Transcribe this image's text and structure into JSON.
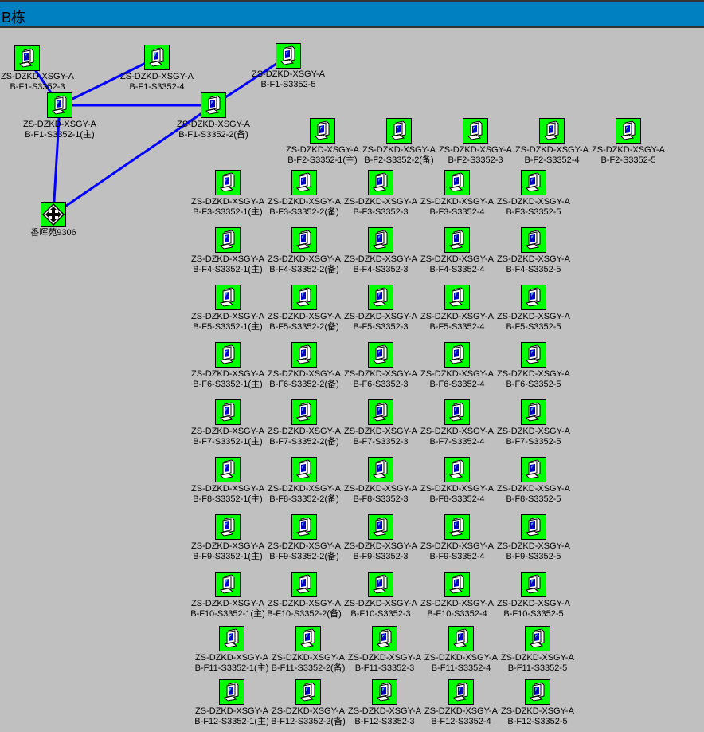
{
  "window": {
    "title": "B栋"
  },
  "colors": {
    "titlebar": "#0080c0",
    "background": "#c0c0c0",
    "node": "#00ff00",
    "link": "#0000ff"
  },
  "gateway": {
    "label": "香晖苑9306",
    "icon": "router-icon"
  },
  "f1_nodes": [
    {
      "id": "f1-3",
      "label": "ZS-DZKD-XSGY-AB-F1-S3352-3",
      "icon": "computer-icon"
    },
    {
      "id": "f1-4",
      "label": "ZS-DZKD-XSGY-AB-F1-S3352-4",
      "icon": "computer-icon"
    },
    {
      "id": "f1-5",
      "label": "ZS-DZKD-XSGY-AB-F1-S3352-5",
      "icon": "computer-icon"
    },
    {
      "id": "f1-1",
      "label": "ZS-DZKD-XSGY-AB-F1-S3352-1(主)",
      "icon": "computer-icon"
    },
    {
      "id": "f1-2",
      "label": "ZS-DZKD-XSGY-AB-F1-S3352-2(备)",
      "icon": "computer-icon"
    }
  ],
  "links": [
    [
      "f1-3",
      "f1-1"
    ],
    [
      "f1-4",
      "f1-1"
    ],
    [
      "f1-1",
      "f1-2"
    ],
    [
      "f1-5",
      "f1-2"
    ],
    [
      "f1-1",
      "gateway"
    ],
    [
      "f1-2",
      "gateway"
    ]
  ],
  "floors": [
    {
      "floor": "F2",
      "labels": [
        "ZS-DZKD-XSGY-AB-F2-S3352-1(主)",
        "ZS-DZKD-XSGY-AB-F2-S3352-2(备)",
        "ZS-DZKD-XSGY-AB-F2-S3352-3",
        "ZS-DZKD-XSGY-AB-F2-S3352-4",
        "ZS-DZKD-XSGY-AB-F2-S3352-5"
      ]
    },
    {
      "floor": "F3",
      "labels": [
        "ZS-DZKD-XSGY-AB-F3-S3352-1(主)",
        "ZS-DZKD-XSGY-AB-F3-S3352-2(备)",
        "ZS-DZKD-XSGY-AB-F3-S3352-3",
        "ZS-DZKD-XSGY-AB-F3-S3352-4",
        "ZS-DZKD-XSGY-AB-F3-S3352-5"
      ]
    },
    {
      "floor": "F4",
      "labels": [
        "ZS-DZKD-XSGY-AB-F4-S3352-1(主)",
        "ZS-DZKD-XSGY-AB-F4-S3352-2(备)",
        "ZS-DZKD-XSGY-AB-F4-S3352-3",
        "ZS-DZKD-XSGY-AB-F4-S3352-4",
        "ZS-DZKD-XSGY-AB-F4-S3352-5"
      ]
    },
    {
      "floor": "F5",
      "labels": [
        "ZS-DZKD-XSGY-AB-F5-S3352-1(主)",
        "ZS-DZKD-XSGY-AB-F5-S3352-2(备)",
        "ZS-DZKD-XSGY-AB-F5-S3352-3",
        "ZS-DZKD-XSGY-AB-F5-S3352-4",
        "ZS-DZKD-XSGY-AB-F5-S3352-5"
      ]
    },
    {
      "floor": "F6",
      "labels": [
        "ZS-DZKD-XSGY-AB-F6-S3352-1(主)",
        "ZS-DZKD-XSGY-AB-F6-S3352-2(备)",
        "ZS-DZKD-XSGY-AB-F6-S3352-3",
        "ZS-DZKD-XSGY-AB-F6-S3352-4",
        "ZS-DZKD-XSGY-AB-F6-S3352-5"
      ]
    },
    {
      "floor": "F7",
      "labels": [
        "ZS-DZKD-XSGY-AB-F7-S3352-1(主)",
        "ZS-DZKD-XSGY-AB-F7-S3352-2(备)",
        "ZS-DZKD-XSGY-AB-F7-S3352-3",
        "ZS-DZKD-XSGY-AB-F7-S3352-4",
        "ZS-DZKD-XSGY-AB-F7-S3352-5"
      ]
    },
    {
      "floor": "F8",
      "labels": [
        "ZS-DZKD-XSGY-AB-F8-S3352-1(主)",
        "ZS-DZKD-XSGY-AB-F8-S3352-2(备)",
        "ZS-DZKD-XSGY-AB-F8-S3352-3",
        "ZS-DZKD-XSGY-AB-F8-S3352-4",
        "ZS-DZKD-XSGY-AB-F8-S3352-5"
      ]
    },
    {
      "floor": "F9",
      "labels": [
        "ZS-DZKD-XSGY-AB-F9-S3352-1(主)",
        "ZS-DZKD-XSGY-AB-F9-S3352-2(备)",
        "ZS-DZKD-XSGY-AB-F9-S3352-3",
        "ZS-DZKD-XSGY-AB-F9-S3352-4",
        "ZS-DZKD-XSGY-AB-F9-S3352-5"
      ]
    },
    {
      "floor": "F10",
      "labels": [
        "ZS-DZKD-XSGY-AB-F10-S3352-1(主)",
        "ZS-DZKD-XSGY-AB-F10-S3352-2(备)",
        "ZS-DZKD-XSGY-AB-F10-S3352-3",
        "ZS-DZKD-XSGY-AB-F10-S3352-4",
        "ZS-DZKD-XSGY-AB-F10-S3352-5"
      ]
    },
    {
      "floor": "F11",
      "labels": [
        "ZS-DZKD-XSGY-AB-F11-S3352-1(主)",
        "ZS-DZKD-XSGY-AB-F11-S3352-2(备)",
        "ZS-DZKD-XSGY-AB-F11-S3352-3",
        "ZS-DZKD-XSGY-AB-F11-S3352-4",
        "ZS-DZKD-XSGY-AB-F11-S3352-5"
      ]
    },
    {
      "floor": "F12",
      "labels": [
        "ZS-DZKD-XSGY-AB-F12-S3352-1(主)",
        "ZS-DZKD-XSGY-AB-F12-S3352-2(备)",
        "ZS-DZKD-XSGY-AB-F12-S3352-3",
        "ZS-DZKD-XSGY-AB-F12-S3352-4",
        "ZS-DZKD-XSGY-AB-F12-S3352-5"
      ]
    }
  ]
}
